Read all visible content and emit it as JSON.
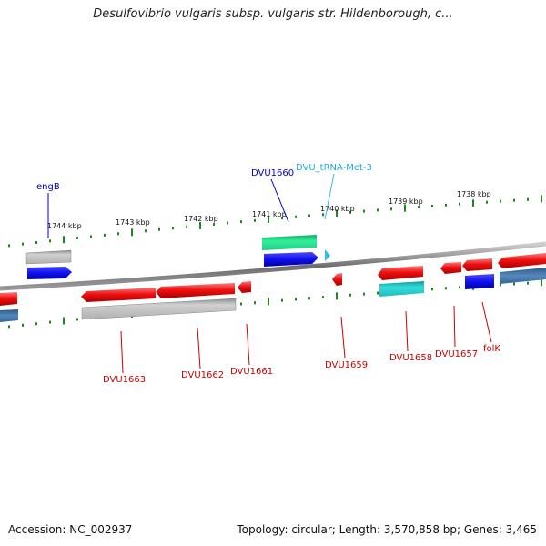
{
  "title": "Desulfovibrio vulgaris subsp. vulgaris str. Hildenborough, c...",
  "footer": {
    "accession": "Accession: NC_002937",
    "summary": "Topology: circular; Length: 3,570,858 bp; Genes: 3,465"
  },
  "colors": {
    "backbone": "#7a7a7a",
    "tick": "#1a8a1a",
    "forward_cds": "#1010ee",
    "reverse_cds": "#ee1111",
    "gene_gray": "#b8b8b8",
    "rna_green": "#22dd99",
    "rna_cyan": "#22cccc",
    "trna": "#33bbee",
    "label_blue": "#0000cc",
    "label_red": "#cc0000",
    "label_cyan": "#22aadd"
  },
  "scale_labels": [
    "1744 kbp",
    "1743 kbp",
    "1742 kbp",
    "1741 kbp",
    "1740 kbp",
    "1739 kbp",
    "1738 kbp"
  ],
  "gene_labels": {
    "engB": "engB",
    "DVU1660": "DVU1660",
    "DVU_tRNA_Met_3": "DVU_tRNA-Met-3",
    "DVU1663": "DVU1663",
    "DVU1662": "DVU1662",
    "DVU1661": "DVU1661",
    "DVU1659": "DVU1659",
    "DVU1658": "DVU1658",
    "DVU1657": "DVU1657",
    "folK": "folK"
  }
}
